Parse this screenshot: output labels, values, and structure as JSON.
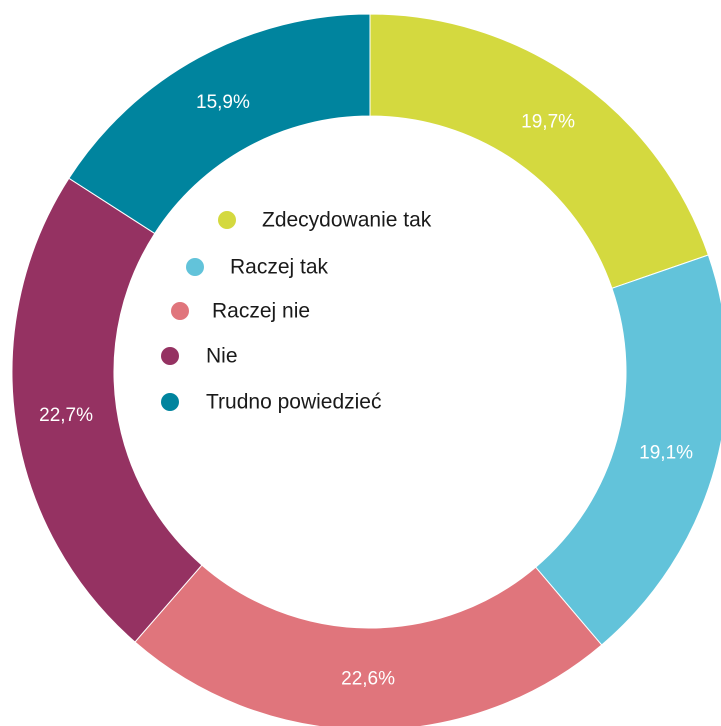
{
  "chart_data": {
    "type": "pie",
    "variant": "donut",
    "categories": [
      "Zdecydowanie tak",
      "Raczej tak",
      "Raczej nie",
      "Nie",
      "Trudno powiedzieć"
    ],
    "values": [
      19.7,
      19.1,
      22.6,
      22.7,
      15.9
    ],
    "value_labels": [
      "19,7%",
      "19,1%",
      "22,6%",
      "22,7%",
      "15,9%"
    ],
    "colors": [
      "#d4d93f",
      "#62c3da",
      "#e0757c",
      "#953262",
      "#00849e"
    ],
    "legend": {
      "placement": "center",
      "items": [
        "Zdecydowanie tak",
        "Raczej tak",
        "Raczej nie",
        "Nie",
        "Trudno powiedzieć"
      ]
    },
    "start_direction": "top",
    "direction": "clockwise"
  }
}
